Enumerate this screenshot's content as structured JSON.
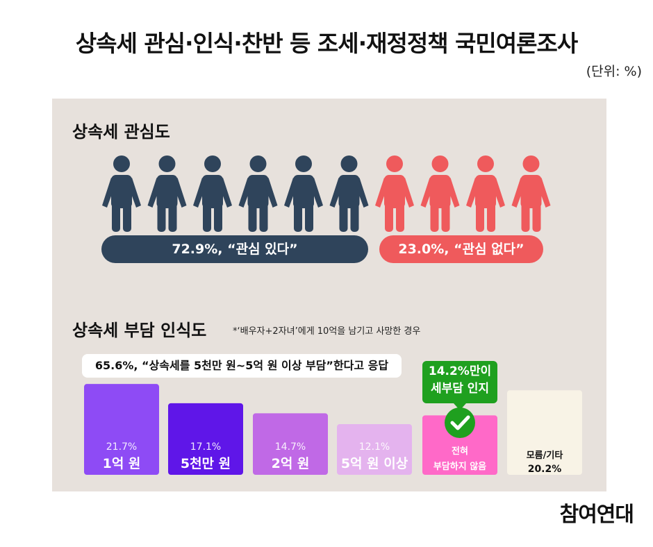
{
  "title": "상속세 관심·인식·찬반 등 조세·재정정책 국민여론조사",
  "unit": "(단위: %)",
  "logo": "참여연대",
  "colors": {
    "panel_bg": "#e7e1dc",
    "interested": "#2f445b",
    "not_interested": "#ef5a5c",
    "green_badge": "#1fa01f"
  },
  "interest_section": {
    "title": "상속세 관심도",
    "icon": "person-icon",
    "interested_label": "72.9%, “관심 있다”",
    "not_interested_label": "23.0%, “관심 없다”"
  },
  "burden_section": {
    "title": "상속세 부담 인식도",
    "footnote": "*‘배우자+2자녀’에게 10억을 남기고 사망한 경우",
    "callout": "65.6%, “상속세를 5천만 원~5억 원 이상 부담”한다고 응답",
    "badge_line1": "14.2%만이",
    "badge_line2": "세부담 인지",
    "check_icon": "check-circle-icon"
  },
  "chart_data": [
    {
      "type": "pictograph",
      "title": "상속세 관심도",
      "categories": [
        "관심 있다",
        "관심 없다"
      ],
      "values": [
        72.9,
        23.0
      ],
      "icons": [
        6,
        4
      ],
      "colors": [
        "#2f445b",
        "#ef5a5c"
      ]
    },
    {
      "type": "bar",
      "title": "상속세 부담 인식도",
      "categories": [
        "1억 원",
        "5천만 원",
        "2억 원",
        "5억 원 이상",
        "전혀 부담하지 않음",
        "모름/기타"
      ],
      "category_lines": [
        [
          "1억 원"
        ],
        [
          "5천만 원"
        ],
        [
          "2억 원"
        ],
        [
          "5억 원 이상"
        ],
        [
          "전혀",
          "부담하지 않음"
        ],
        [
          "모름/기타"
        ]
      ],
      "values": [
        21.7,
        17.1,
        14.7,
        12.1,
        14.2,
        20.2
      ],
      "value_labels": [
        "21.7%",
        "17.1%",
        "14.7%",
        "12.1%",
        "",
        "20.2%"
      ],
      "colors": [
        "#8e4bf5",
        "#5f16e8",
        "#c069e6",
        "#e4b3ee",
        "#ff69c8",
        "#f8f3e6"
      ],
      "text_colors": [
        "#ffffff",
        "#ffffff",
        "#ffffff",
        "#ffffff",
        "#ffffff",
        "#111111"
      ],
      "ylim": [
        0,
        25
      ]
    }
  ]
}
